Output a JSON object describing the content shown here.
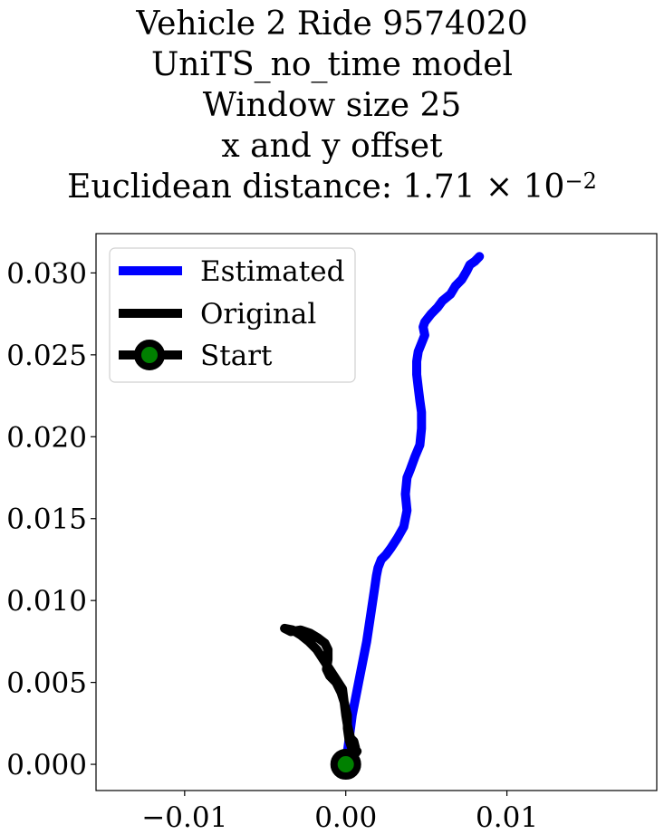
{
  "chart_data": {
    "type": "line",
    "title_lines": [
      "Vehicle 2 Ride 9574020",
      "UniTS_no_time model",
      "Window size 25",
      "x and y offset"
    ],
    "distance_label": "Euclidean distance: 1.71 × 10",
    "distance_exponent": "−2",
    "xlabel": "",
    "ylabel": "",
    "xlim": [
      -0.0155,
      0.0193
    ],
    "ylim": [
      -0.0016,
      0.0324
    ],
    "x_ticks": [
      -0.01,
      0.0,
      0.01
    ],
    "x_tick_labels": [
      "−0.01",
      "0.00",
      "0.01"
    ],
    "y_ticks": [
      0.0,
      0.005,
      0.01,
      0.015,
      0.02,
      0.025,
      0.03
    ],
    "y_tick_labels": [
      "0.000",
      "0.005",
      "0.010",
      "0.015",
      "0.020",
      "0.025",
      "0.030"
    ],
    "grid": false,
    "legend_position": "upper-left",
    "series": [
      {
        "name": "Estimated",
        "color": "#0000ff",
        "points": [
          [
            0.0,
            0.0
          ],
          [
            0.0002,
            0.0015
          ],
          [
            0.0004,
            0.003
          ],
          [
            0.0008,
            0.005
          ],
          [
            0.0013,
            0.0075
          ],
          [
            0.0016,
            0.0095
          ],
          [
            0.0018,
            0.0108
          ],
          [
            0.0019,
            0.0115
          ],
          [
            0.002,
            0.012
          ],
          [
            0.0022,
            0.0125
          ],
          [
            0.0025,
            0.0128
          ],
          [
            0.0028,
            0.0132
          ],
          [
            0.0032,
            0.0138
          ],
          [
            0.0036,
            0.0145
          ],
          [
            0.0038,
            0.0155
          ],
          [
            0.0037,
            0.0165
          ],
          [
            0.0038,
            0.0175
          ],
          [
            0.004,
            0.018
          ],
          [
            0.0043,
            0.0188
          ],
          [
            0.0046,
            0.0195
          ],
          [
            0.0047,
            0.0205
          ],
          [
            0.0047,
            0.0215
          ],
          [
            0.0046,
            0.0222
          ],
          [
            0.0045,
            0.023
          ],
          [
            0.0044,
            0.0238
          ],
          [
            0.0044,
            0.0246
          ],
          [
            0.0045,
            0.0252
          ],
          [
            0.0047,
            0.0257
          ],
          [
            0.0049,
            0.0262
          ],
          [
            0.0048,
            0.0267
          ],
          [
            0.0049,
            0.027
          ],
          [
            0.0053,
            0.0275
          ],
          [
            0.0057,
            0.0279
          ],
          [
            0.006,
            0.0283
          ],
          [
            0.0065,
            0.0287
          ],
          [
            0.0068,
            0.0292
          ],
          [
            0.0072,
            0.0296
          ],
          [
            0.0075,
            0.0301
          ],
          [
            0.0077,
            0.0305
          ],
          [
            0.008,
            0.0307
          ],
          [
            0.0083,
            0.031
          ]
        ]
      },
      {
        "name": "Original",
        "color": "#000000",
        "points": [
          [
            0.0,
            0.0
          ],
          [
            0.0003,
            0.0006
          ],
          [
            0.0006,
            0.001
          ],
          [
            0.0005,
            0.0014
          ],
          [
            0.0003,
            0.0016
          ],
          [
            0.0002,
            0.002
          ],
          [
            0.0001,
            0.0024
          ],
          [
            0.0,
            0.003
          ],
          [
            -0.0001,
            0.0038
          ],
          [
            -0.0002,
            0.0046
          ],
          [
            -0.0006,
            0.0052
          ],
          [
            -0.001,
            0.0058
          ],
          [
            -0.0014,
            0.0064
          ],
          [
            -0.0018,
            0.007
          ],
          [
            -0.0023,
            0.0075
          ],
          [
            -0.0028,
            0.0079
          ],
          [
            -0.0033,
            0.0082
          ],
          [
            -0.0038,
            0.0083
          ],
          [
            -0.0034,
            0.0081
          ],
          [
            -0.0028,
            0.0082
          ],
          [
            -0.0022,
            0.008
          ],
          [
            -0.0017,
            0.0077
          ],
          [
            -0.0013,
            0.0074
          ],
          [
            -0.0011,
            0.007
          ],
          [
            -0.0011,
            0.0064
          ],
          [
            -0.0012,
            0.0058
          ],
          [
            -0.001,
            0.0054
          ],
          [
            -0.0006,
            0.005
          ],
          [
            -0.0003,
            0.0044
          ],
          [
            -0.0001,
            0.0038
          ],
          [
            0.0001,
            0.003
          ],
          [
            0.0001,
            0.0022
          ],
          [
            0.0002,
            0.0015
          ],
          [
            0.0004,
            0.0009
          ],
          [
            0.0007,
            0.0008
          ],
          [
            0.0004,
            0.0004
          ],
          [
            0.0001,
            0.0001
          ],
          [
            0.0,
            0.0
          ]
        ]
      }
    ],
    "start": {
      "name": "Start",
      "point": [
        0.0,
        0.0
      ],
      "marker_edge_color": "#000000",
      "marker_face_color": "#008000"
    }
  }
}
